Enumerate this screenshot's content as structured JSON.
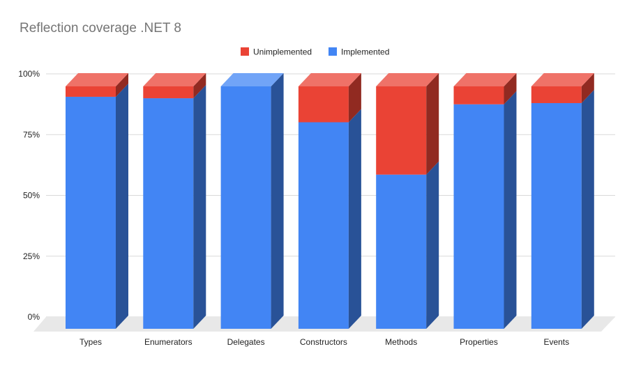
{
  "chart_data": {
    "type": "bar",
    "stacked": true,
    "style": "3d",
    "title": "Reflection coverage .NET 8",
    "xlabel": "",
    "ylabel": "",
    "ylim": [
      0,
      1
    ],
    "y_ticks": [
      0,
      0.25,
      0.5,
      0.75,
      1.0
    ],
    "y_tick_labels": [
      "0%",
      "25%",
      "50%",
      "75%",
      "100%"
    ],
    "grid": true,
    "legend_position": "top-center",
    "categories": [
      "Types",
      "Enumerators",
      "Delegates",
      "Constructors",
      "Methods",
      "Properties",
      "Events"
    ],
    "series": [
      {
        "name": "Implemented",
        "color": "#4285f4",
        "values": [
          0.957,
          0.951,
          1.0,
          0.852,
          0.636,
          0.926,
          0.931
        ]
      },
      {
        "name": "Unimplemented",
        "color": "#ea4335",
        "values": [
          0.043,
          0.049,
          0.0,
          0.148,
          0.364,
          0.074,
          0.069
        ]
      }
    ],
    "legend_order": [
      "Unimplemented",
      "Implemented"
    ]
  }
}
